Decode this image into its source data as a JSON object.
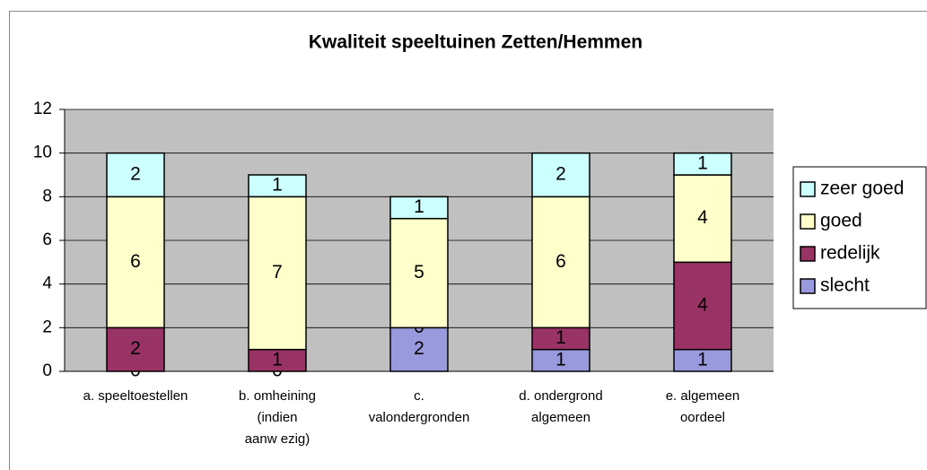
{
  "chart_data": {
    "type": "stacked_bar",
    "title": "Kwaliteit speeltuinen Zetten/Hemmen",
    "categories": [
      [
        "a. speeltoestellen"
      ],
      [
        "b. omheining",
        "(indien",
        "aanw ezig)"
      ],
      [
        "c.",
        "valondergronden"
      ],
      [
        "d. ondergrond",
        "algemeen"
      ],
      [
        "e. algemeen",
        "oordeel"
      ]
    ],
    "series": [
      {
        "name": "slecht",
        "color": "#9999dd",
        "values": [
          0,
          0,
          2,
          1,
          1
        ]
      },
      {
        "name": "redelijk",
        "color": "#993366",
        "values": [
          2,
          1,
          0,
          1,
          4
        ]
      },
      {
        "name": "goed",
        "color": "#ffffcc",
        "values": [
          6,
          7,
          5,
          6,
          4
        ]
      },
      {
        "name": "zeer goed",
        "color": "#ccffff",
        "values": [
          2,
          1,
          1,
          2,
          1
        ]
      }
    ],
    "ylim": [
      0,
      12
    ],
    "yticks": [
      0,
      2,
      4,
      6,
      8,
      10,
      12
    ],
    "grid": true,
    "legend": "right"
  }
}
